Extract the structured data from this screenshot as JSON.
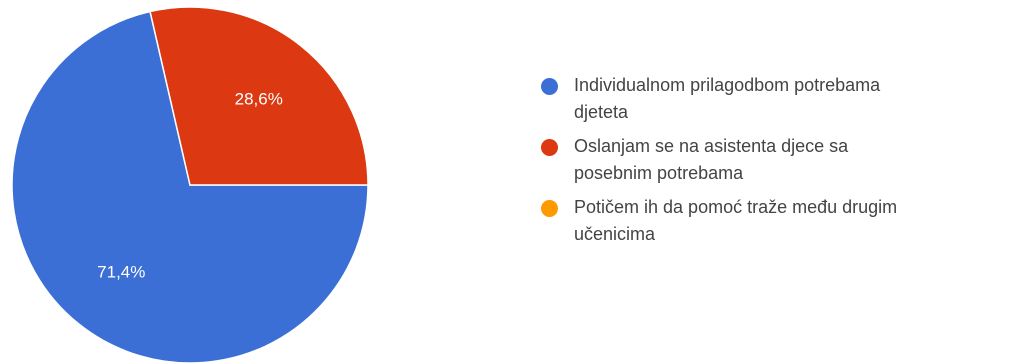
{
  "chart_data": {
    "type": "pie",
    "categories": [
      "Individualnom prilagodbom potrebama djeteta",
      "Oslanjam se na asistenta djece sa posebnim potrebama",
      "Potičem ih da pomoć traže među drugim učenicima"
    ],
    "values": [
      71.4,
      28.6,
      0
    ],
    "value_labels": [
      "71,4%",
      "28,6%",
      ""
    ],
    "colors": [
      "#3b6fd6",
      "#dc3912",
      "#ff9900"
    ],
    "legend_position": "right"
  },
  "legend": {
    "items": [
      {
        "line1": "Individualnom prilagodbom potrebama",
        "line2": "djeteta",
        "color": "#3b6fd6"
      },
      {
        "line1": "Oslanjam se na asistenta djece sa",
        "line2": "posebnim potrebama",
        "color": "#dc3912"
      },
      {
        "line1": "Potičem ih da pomoć traže među drugim",
        "line2": "učenicima",
        "color": "#ff9900"
      }
    ]
  }
}
